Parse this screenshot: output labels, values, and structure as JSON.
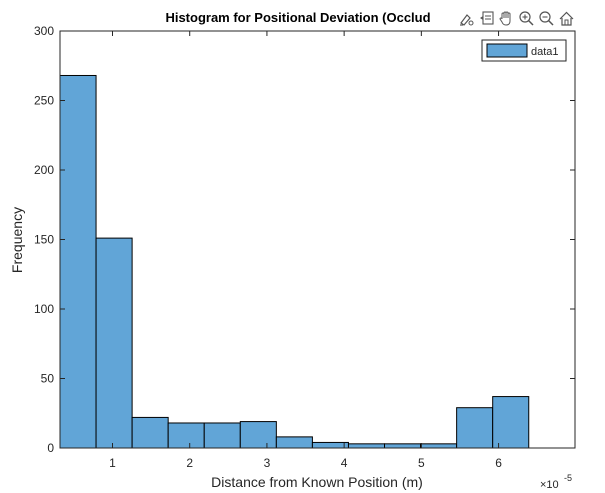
{
  "toolbar": {
    "tools": [
      {
        "name": "brush-icon"
      },
      {
        "name": "data-tips-icon"
      },
      {
        "name": "pan-icon"
      },
      {
        "name": "zoom-in-icon"
      },
      {
        "name": "zoom-out-icon"
      },
      {
        "name": "home-icon"
      }
    ]
  },
  "chart_data": {
    "type": "bar",
    "title": "Histogram for Positional Deviation (Occlud",
    "xlabel": "Distance from Known Position (m)",
    "ylabel": "Frequency",
    "x_exponent_label": "×10",
    "x_exponent_value": "-5",
    "bin_edges": [
      0.32,
      0.787,
      1.254,
      1.721,
      2.188,
      2.655,
      3.122,
      3.589,
      4.056,
      4.523,
      4.99,
      5.457,
      5.924,
      6.391
    ],
    "values": [
      268,
      151,
      22,
      18,
      18,
      19,
      8,
      4,
      3,
      3,
      3,
      29,
      37
    ],
    "xlim": [
      0.32,
      6.99
    ],
    "ylim": [
      0,
      300
    ],
    "x_ticks": [
      1,
      2,
      3,
      4,
      5,
      6
    ],
    "y_ticks": [
      0,
      50,
      100,
      150,
      200,
      250,
      300
    ],
    "series": [
      {
        "name": "data1",
        "color": "#61a5d7"
      }
    ],
    "legend_position": "top-right",
    "grid": false,
    "bar_color": "#61a5d7",
    "edge_color": "#000000"
  }
}
